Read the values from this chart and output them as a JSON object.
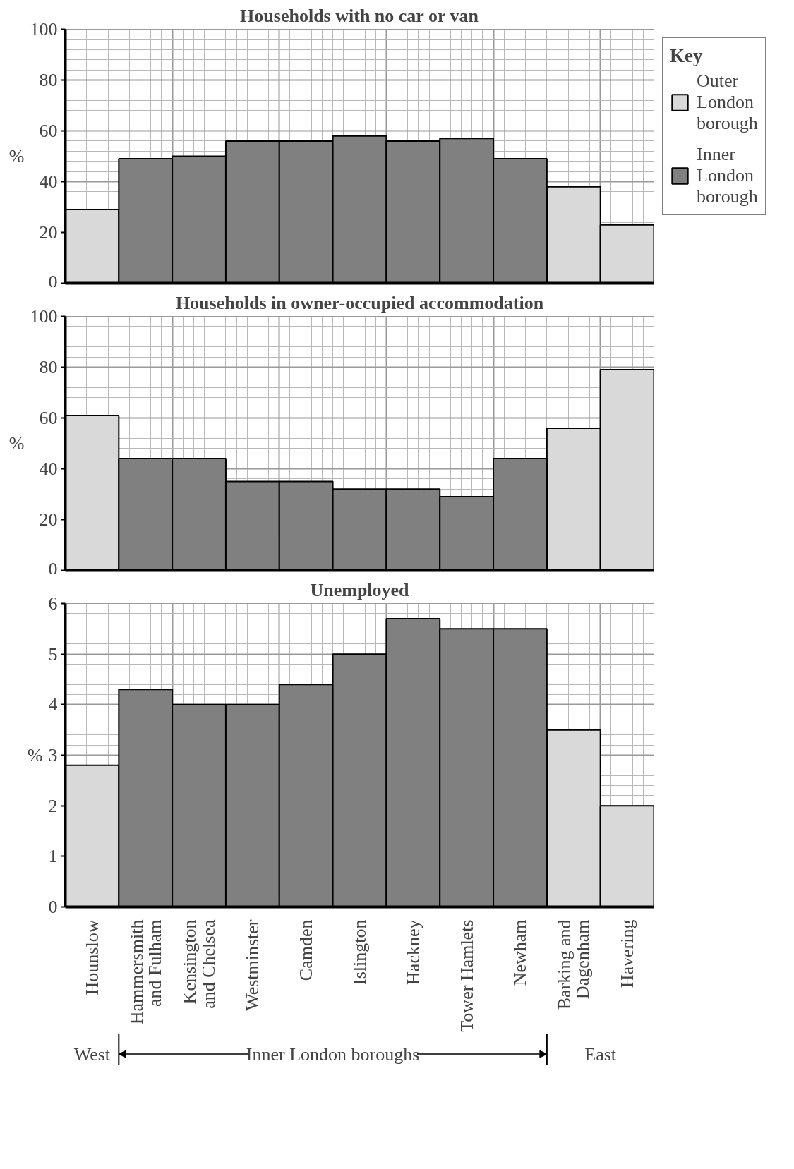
{
  "chart_data": [
    {
      "type": "bar",
      "title": "Households with no car or van",
      "ylabel": "%",
      "categories": [
        "Hounslow",
        "Hammersmith and Fulham",
        "Kensington and Chelsea",
        "Westminster",
        "Camden",
        "Islington",
        "Hackney",
        "Tower Hamlets",
        "Newham",
        "Barking and Dagenham",
        "Havering"
      ],
      "series": [
        {
          "name": "Outer London borough",
          "color": "#d9d9d9",
          "values": [
            29,
            null,
            null,
            null,
            null,
            null,
            null,
            null,
            null,
            38,
            23
          ]
        },
        {
          "name": "Inner London borough",
          "color": "#808080",
          "values": [
            null,
            49,
            50,
            56,
            56,
            58,
            56,
            57,
            49,
            null,
            null
          ]
        }
      ],
      "ylim": [
        0,
        100
      ],
      "yticks": [
        0,
        20,
        40,
        60,
        80,
        100
      ],
      "grid": true,
      "legend": "right",
      "legend_title": "Key",
      "tick_labels": "y"
    },
    {
      "type": "bar",
      "title": "Households in owner-occupied accommodation",
      "ylabel": "%",
      "categories": [
        "Hounslow",
        "Hammersmith and Fulham",
        "Kensington and Chelsea",
        "Westminster",
        "Camden",
        "Islington",
        "Hackney",
        "Tower Hamlets",
        "Newham",
        "Barking and Dagenham",
        "Havering"
      ],
      "series": [
        {
          "color": "#d9d9d9",
          "values": [
            61,
            null,
            null,
            null,
            null,
            null,
            null,
            null,
            null,
            56,
            79
          ]
        },
        {
          "color": "#808080",
          "values": [
            null,
            44,
            44,
            35,
            35,
            32,
            32,
            29,
            44,
            null,
            null
          ]
        }
      ],
      "ylim": [
        0,
        100
      ],
      "yticks": [
        0,
        20,
        40,
        60,
        80,
        100
      ],
      "grid": true,
      "tick_labels": "y"
    },
    {
      "type": "bar",
      "title": "Unemployed",
      "ylabel": "%",
      "categories": [
        "Hounslow",
        "Hammersmith and Fulham",
        "Kensington and Chelsea",
        "Westminster",
        "Camden",
        "Islington",
        "Hackney",
        "Tower Hamlets",
        "Newham",
        "Barking and Dagenham",
        "Havering"
      ],
      "series": [
        {
          "color": "#d9d9d9",
          "values": [
            2.8,
            null,
            null,
            null,
            null,
            null,
            null,
            null,
            null,
            3.5,
            2.0
          ]
        },
        {
          "color": "#808080",
          "values": [
            null,
            4.3,
            4.0,
            4.0,
            4.4,
            5.0,
            5.7,
            5.5,
            5.5,
            null,
            null
          ]
        }
      ],
      "ylim": [
        0,
        6
      ],
      "yticks": [
        0,
        1,
        2,
        3,
        4,
        5,
        6
      ],
      "grid": true,
      "annotations": [
        "West",
        "Inner London boroughs",
        "East"
      ]
    }
  ]
}
